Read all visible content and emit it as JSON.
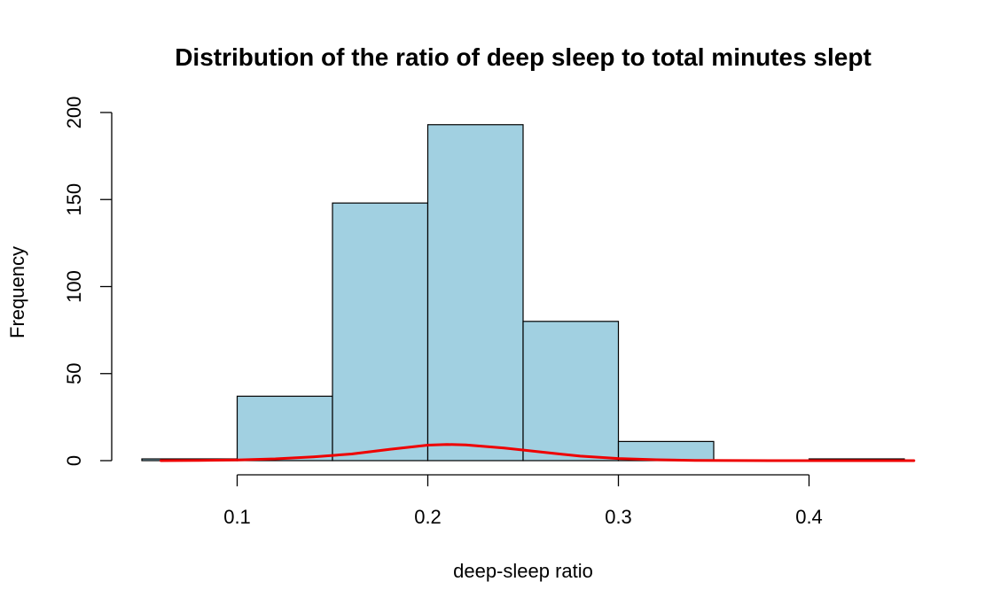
{
  "chart_data": {
    "type": "bar",
    "title": "Distribution of the ratio of deep sleep to total minutes slept",
    "xlabel": "deep-sleep ratio",
    "ylabel": "Frequency",
    "xlim": [
      0.05,
      0.45
    ],
    "ylim": [
      0,
      200
    ],
    "x_ticks": [
      0.1,
      0.2,
      0.3,
      0.4
    ],
    "x_tick_labels": [
      "0.1",
      "0.2",
      "0.3",
      "0.4"
    ],
    "y_ticks": [
      0,
      50,
      100,
      150,
      200
    ],
    "y_tick_labels": [
      "0",
      "50",
      "100",
      "150",
      "200"
    ],
    "bins": [
      {
        "start": 0.05,
        "end": 0.1,
        "count": 1
      },
      {
        "start": 0.1,
        "end": 0.15,
        "count": 37
      },
      {
        "start": 0.15,
        "end": 0.2,
        "count": 148
      },
      {
        "start": 0.2,
        "end": 0.25,
        "count": 193
      },
      {
        "start": 0.25,
        "end": 0.3,
        "count": 80
      },
      {
        "start": 0.3,
        "end": 0.35,
        "count": 11
      },
      {
        "start": 0.35,
        "end": 0.4,
        "count": 0
      },
      {
        "start": 0.4,
        "end": 0.45,
        "count": 1
      }
    ],
    "bar_color": "#a1d0e1",
    "bar_border_color": "#000000",
    "density_curve": {
      "color": "#ee0000",
      "x": [
        0.06,
        0.08,
        0.1,
        0.12,
        0.14,
        0.16,
        0.18,
        0.2,
        0.21,
        0.22,
        0.24,
        0.26,
        0.28,
        0.3,
        0.32,
        0.34,
        0.36,
        0.38,
        0.4,
        0.42,
        0.44,
        0.455
      ],
      "y": [
        0.02,
        0.1,
        0.4,
        1.0,
        2.2,
        3.8,
        6.5,
        8.9,
        9.3,
        9.0,
        7.3,
        4.9,
        2.6,
        1.2,
        0.5,
        0.15,
        0.05,
        0.02,
        0.01,
        0.01,
        0.01,
        0.01
      ]
    },
    "grid": false,
    "legend": "none"
  }
}
